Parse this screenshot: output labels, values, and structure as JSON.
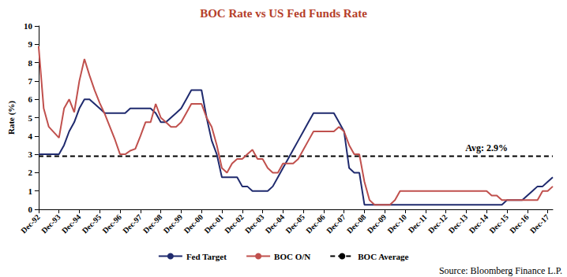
{
  "chart_data": {
    "type": "line",
    "title": "BOC Rate vs US Fed Funds Rate",
    "ylabel": "Rate (%)",
    "source": "Source: Bloomberg Finance L.P.",
    "categories": [
      "Dec-92",
      null,
      null,
      null,
      "Dec-93",
      null,
      null,
      null,
      "Dec-94",
      null,
      null,
      null,
      "Dec-95",
      null,
      null,
      null,
      "Dec-96",
      null,
      null,
      null,
      "Dec-97",
      null,
      null,
      null,
      "Dec-98",
      null,
      null,
      null,
      "Dec-99",
      null,
      null,
      null,
      "Dec-00",
      null,
      null,
      null,
      "Dec-01",
      null,
      null,
      null,
      "Dec-02",
      null,
      null,
      null,
      "Dec-03",
      null,
      null,
      null,
      "Dec-04",
      null,
      null,
      null,
      "Dec-05",
      null,
      null,
      null,
      "Dec-06",
      null,
      null,
      null,
      "Dec-07",
      null,
      null,
      null,
      "Dec-08",
      null,
      null,
      null,
      "Dec-09",
      null,
      null,
      null,
      "Dec-10",
      null,
      null,
      null,
      "Dec-11",
      null,
      null,
      null,
      "Dec-12",
      null,
      null,
      null,
      "Dec-13",
      null,
      null,
      null,
      "Dec-14",
      null,
      null,
      null,
      "Dec-15",
      null,
      null,
      null,
      "Dec-16",
      null,
      null,
      null,
      "Dec-17",
      null
    ],
    "series": [
      {
        "name": "Fed Target",
        "color": "#1f2a6e",
        "line_style": "solid",
        "values": [
          3,
          3,
          3,
          3,
          3,
          3.5,
          4.25,
          4.75,
          5.5,
          6,
          6,
          5.75,
          5.5,
          5.25,
          5.25,
          5.25,
          5.25,
          5.25,
          5.5,
          5.5,
          5.5,
          5.5,
          5.5,
          5.25,
          4.75,
          4.75,
          5,
          5.25,
          5.5,
          6,
          6.5,
          6.5,
          6.5,
          5,
          3.75,
          3,
          1.75,
          1.75,
          1.75,
          1.75,
          1.25,
          1.25,
          1,
          1,
          1,
          1,
          1.25,
          1.75,
          2.25,
          2.75,
          3.25,
          3.75,
          4.25,
          4.75,
          5.25,
          5.25,
          5.25,
          5.25,
          5.25,
          4.75,
          4.25,
          2.25,
          2,
          2,
          0.25,
          0.25,
          0.25,
          0.25,
          0.25,
          0.25,
          0.25,
          0.25,
          0.25,
          0.25,
          0.25,
          0.25,
          0.25,
          0.25,
          0.25,
          0.25,
          0.25,
          0.25,
          0.25,
          0.25,
          0.25,
          0.25,
          0.25,
          0.25,
          0.25,
          0.25,
          0.25,
          0.25,
          0.5,
          0.5,
          0.5,
          0.5,
          0.75,
          1,
          1.25,
          1.25,
          1.5,
          1.75
        ]
      },
      {
        "name": "BOC O/N",
        "color": "#c0504d",
        "line_style": "solid",
        "values": [
          8.9,
          5.5,
          4.5,
          4.2,
          3.9,
          5.5,
          6,
          5.3,
          7,
          8.2,
          7.3,
          6.5,
          5.8,
          5.2,
          4.5,
          3.8,
          3,
          3,
          3.2,
          3.3,
          4,
          4.75,
          4.75,
          5.75,
          5,
          4.75,
          4.5,
          4.5,
          4.75,
          5.25,
          5.75,
          5.75,
          5.75,
          5,
          4.5,
          3.5,
          2.25,
          2,
          2.5,
          2.75,
          2.75,
          3,
          3.25,
          2.75,
          2.75,
          2.25,
          2,
          2,
          2.5,
          2.5,
          2.5,
          2.75,
          3.25,
          3.75,
          4.25,
          4.25,
          4.25,
          4.25,
          4.25,
          4.5,
          4.25,
          3.5,
          3,
          3,
          1.5,
          0.5,
          0.25,
          0.25,
          0.25,
          0.25,
          0.5,
          1,
          1,
          1,
          1,
          1,
          1,
          1,
          1,
          1,
          1,
          1,
          1,
          1,
          1,
          1,
          1,
          1,
          1,
          0.75,
          0.75,
          0.5,
          0.5,
          0.5,
          0.5,
          0.5,
          0.5,
          0.5,
          0.5,
          1,
          1,
          1.25
        ]
      },
      {
        "name": "BOC Average",
        "color": "#000000",
        "line_style": "dashed",
        "values": [
          2.9,
          2.9,
          2.9,
          2.9,
          2.9,
          2.9,
          2.9,
          2.9,
          2.9,
          2.9,
          2.9,
          2.9,
          2.9,
          2.9,
          2.9,
          2.9,
          2.9,
          2.9,
          2.9,
          2.9,
          2.9,
          2.9,
          2.9,
          2.9,
          2.9,
          2.9,
          2.9,
          2.9,
          2.9,
          2.9,
          2.9,
          2.9,
          2.9,
          2.9,
          2.9,
          2.9,
          2.9,
          2.9,
          2.9,
          2.9,
          2.9,
          2.9,
          2.9,
          2.9,
          2.9,
          2.9,
          2.9,
          2.9,
          2.9,
          2.9,
          2.9,
          2.9,
          2.9,
          2.9,
          2.9,
          2.9,
          2.9,
          2.9,
          2.9,
          2.9,
          2.9,
          2.9,
          2.9,
          2.9,
          2.9,
          2.9,
          2.9,
          2.9,
          2.9,
          2.9,
          2.9,
          2.9,
          2.9,
          2.9,
          2.9,
          2.9,
          2.9,
          2.9,
          2.9,
          2.9,
          2.9,
          2.9,
          2.9,
          2.9,
          2.9,
          2.9,
          2.9,
          2.9,
          2.9,
          2.9,
          2.9,
          2.9,
          2.9,
          2.9,
          2.9,
          2.9,
          2.9,
          2.9,
          2.9,
          2.9,
          2.9,
          2.9
        ]
      }
    ],
    "annotations": [
      {
        "text": "Avg: 2.9%",
        "x": "Dec-14",
        "y": 2.9,
        "series": "BOC Average"
      }
    ],
    "ylim": [
      0,
      10
    ],
    "yticks": [
      0,
      1,
      2,
      3,
      4,
      5,
      6,
      7,
      8,
      9,
      10
    ],
    "grid": false,
    "legend": "bottom"
  }
}
